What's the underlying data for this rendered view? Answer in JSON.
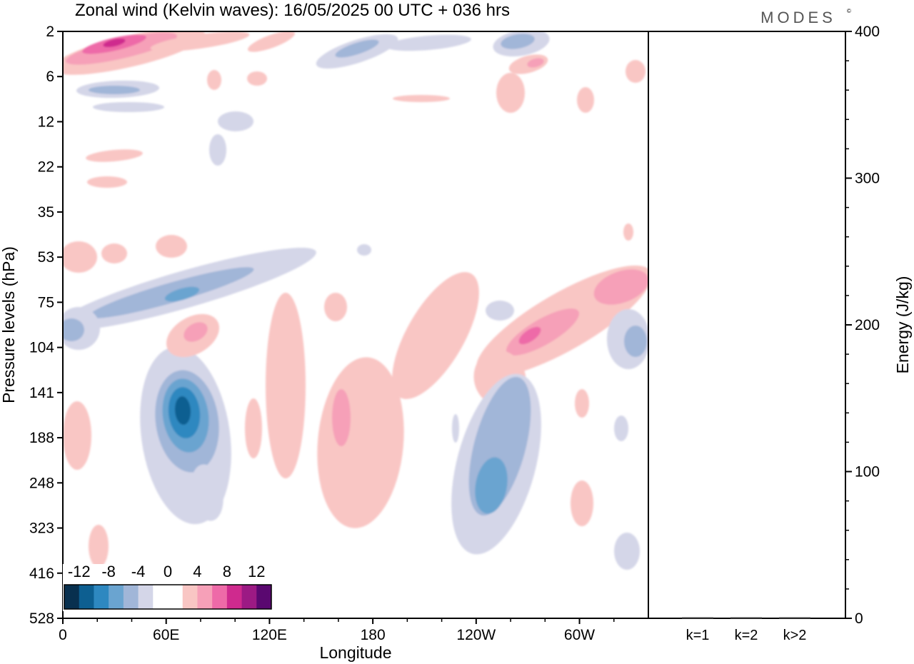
{
  "chart_data": [
    {
      "type": "heatmap",
      "title": "Zonal wind (Kelvin waves):  16/05/2025  00 UTC  + 036 hrs",
      "xlabel": "Longitude",
      "ylabel": "Pressure levels (hPa)",
      "x_ticks": [
        "0",
        "60E",
        "120E",
        "180",
        "120W",
        "60W"
      ],
      "y_ticks": [
        "2",
        "6",
        "12",
        "22",
        "35",
        "53",
        "75",
        "104",
        "141",
        "188",
        "248",
        "323",
        "416",
        "528"
      ],
      "colorbar": {
        "tick_labels": [
          "-12",
          "-8",
          "-4",
          "0",
          "4",
          "8",
          "12"
        ],
        "colors": [
          "#08304f",
          "#0d5f91",
          "#2e88c0",
          "#6aa4d0",
          "#a1b6d8",
          "#d4d6e8",
          "#ffffff",
          "#ffffff",
          "#f9c6c4",
          "#f6a0b8",
          "#ee6aa8",
          "#cf2a8e",
          "#9c1a84",
          "#5a0870"
        ]
      }
    },
    {
      "type": "bar",
      "ylabel": "Energy (J/kg)",
      "categories": [
        "k=1",
        "k=2",
        "k>2"
      ],
      "values": [
        0.2,
        0.2,
        0.2
      ],
      "ylim": [
        0,
        400
      ],
      "y_ticks": [
        "0",
        "100",
        "200",
        "300",
        "400"
      ]
    }
  ],
  "brand": "MODES",
  "brand_mark": "©"
}
